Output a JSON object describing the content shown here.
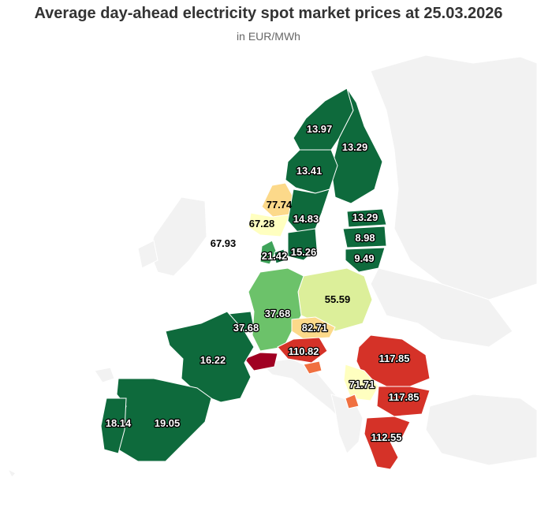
{
  "title": "Average day-ahead electricity spot market prices at 25.03.2026",
  "subtitle": "in EUR/MWh",
  "colors": {
    "dark_green": "#0e6a3c",
    "green": "#3fa35a",
    "light_green": "#6cc26a",
    "yellow_green": "#dcef9a",
    "pale_yellow": "#ffffc0",
    "light_orange": "#fcd98a",
    "orange": "#f07040",
    "red": "#d53228",
    "dark_red": "#a00022",
    "land": "#f2f2f2"
  },
  "prices": {
    "no_north": "13.97",
    "finland": "13.29",
    "se_central": "13.41",
    "no_west": "77.74",
    "no_south": "67.28",
    "se_south_central": "14.83",
    "uk": "67.93",
    "dk": "21.42",
    "se_south": "15.26",
    "estonia": "13.29",
    "latvia": "8.98",
    "lithuania": "9.49",
    "germany": "37.68",
    "poland": "55.59",
    "belgium": "37.68",
    "czechia": "82.71",
    "france": "16.22",
    "austria": "110.82",
    "romania": "117.85",
    "serbia": "71.71",
    "bulgaria": "117.85",
    "portugal": "18.14",
    "spain": "19.05",
    "greece": "112.55"
  }
}
